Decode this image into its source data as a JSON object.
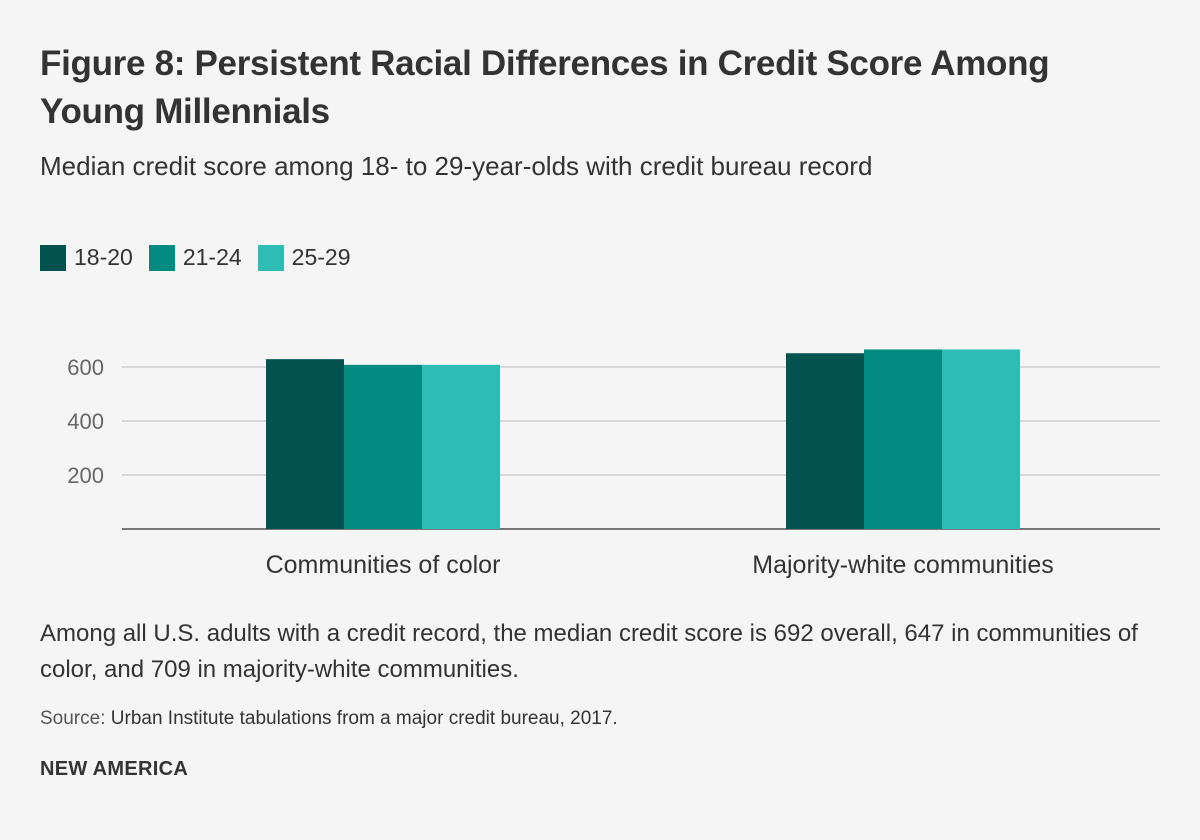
{
  "header": {
    "title": "Figure 8: Persistent Racial Differences in Credit Score Among Young Millennials",
    "subtitle": "Median credit score among 18- to 29-year-olds with credit bureau record"
  },
  "legend": [
    {
      "label": "18-20",
      "color": "#02524f"
    },
    {
      "label": "21-24",
      "color": "#018a7f"
    },
    {
      "label": "25-29",
      "color": "#2ebdb4"
    }
  ],
  "chart_data": {
    "type": "bar",
    "title": "Figure 8: Persistent Racial Differences in Credit Score Among Young Millennials",
    "subtitle": "Median credit score among 18- to 29-year-olds with credit bureau record",
    "categories": [
      "Communities of color",
      "Majority-white communities"
    ],
    "series": [
      {
        "name": "18-20",
        "values": [
          629,
          651
        ]
      },
      {
        "name": "21-24",
        "values": [
          608,
          665
        ]
      },
      {
        "name": "25-29",
        "values": [
          608,
          665
        ]
      }
    ],
    "ylim": [
      0,
      700
    ],
    "yticks": [
      200,
      400,
      600
    ],
    "xlabel": "",
    "ylabel": "",
    "grid": true,
    "legend_position": "top-left"
  },
  "footer": {
    "note": "Among all U.S. adults with a credit record, the median credit score is 692 overall, 647 in communities of color, and 709 in majority-white communities.",
    "source_label": "Source:",
    "source_text": "Urban Institute tabulations from a major credit bureau, 2017.",
    "brand": "NEW AMERICA"
  }
}
